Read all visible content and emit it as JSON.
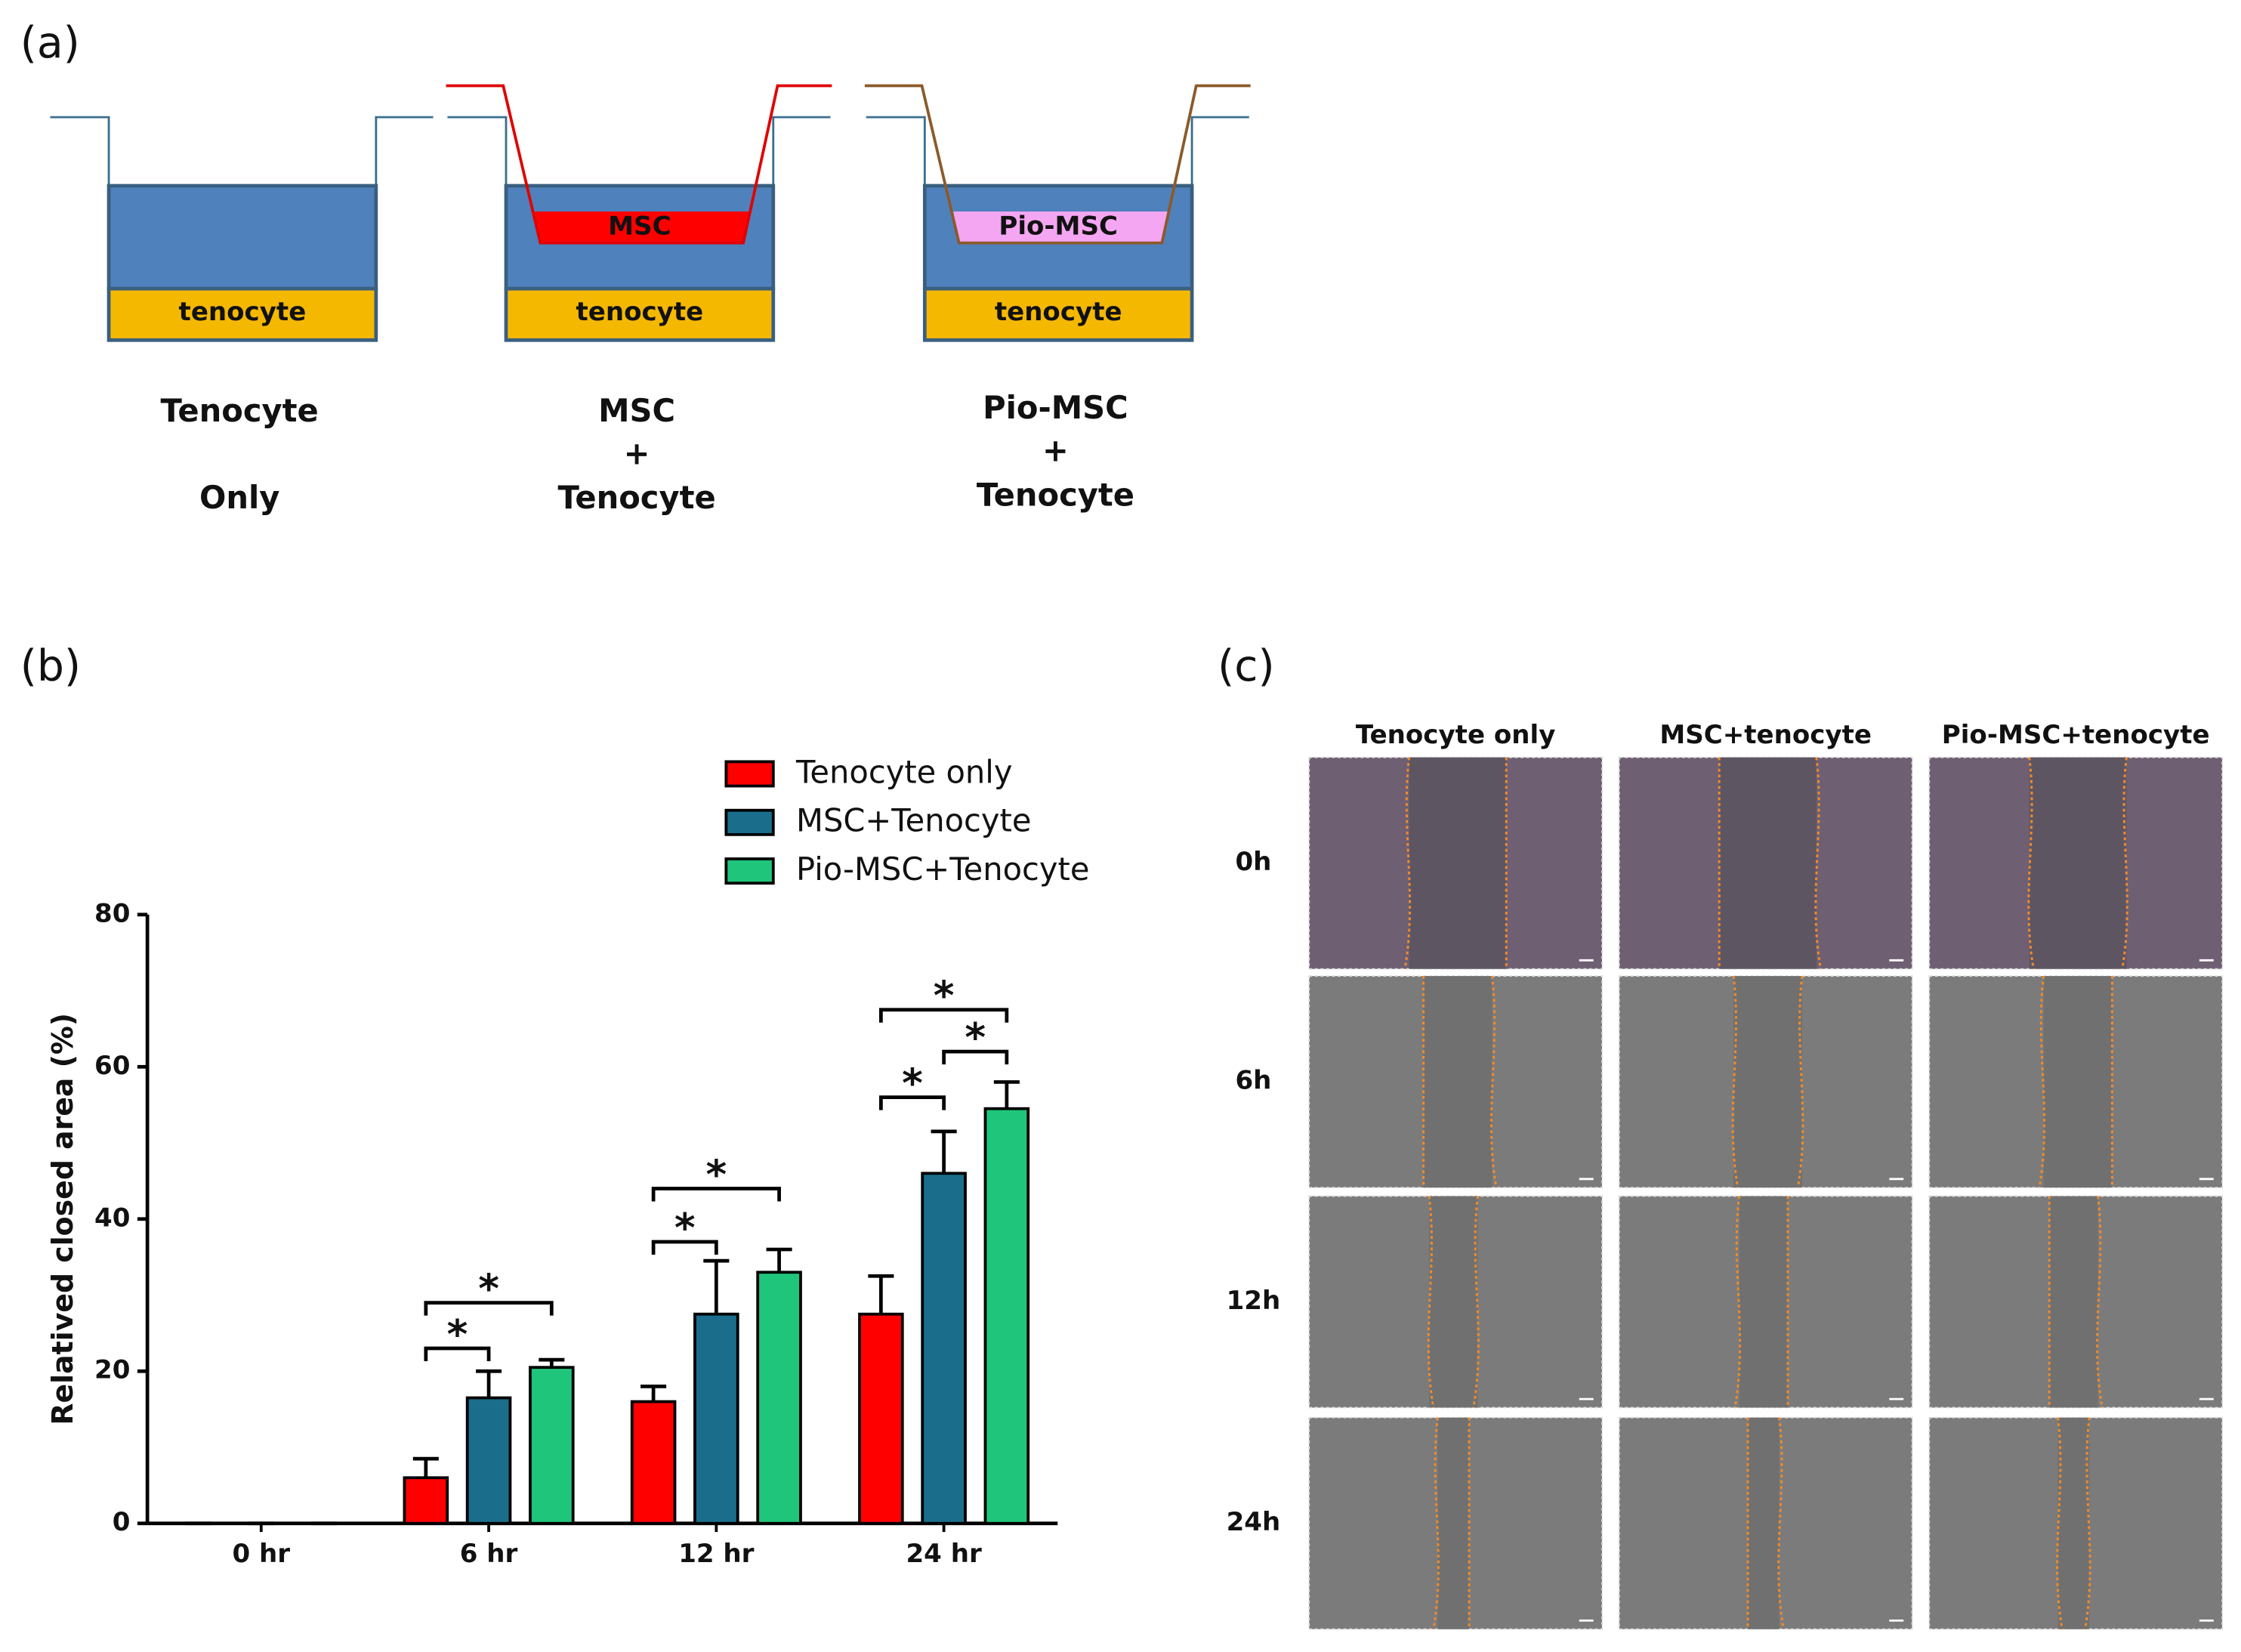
{
  "panel_a": {
    "label": "(a)",
    "wells": [
      {
        "layers": [
          "tenocyte"
        ],
        "caption": [
          "Tenocyte",
          "Only"
        ]
      },
      {
        "layers": [
          "tenocyte"
        ],
        "insert": "MSC",
        "caption": [
          "MSC",
          "+",
          "Tenocyte"
        ]
      },
      {
        "layers": [
          "tenocyte"
        ],
        "insert": "Pio-MSC",
        "caption": [
          "Pio-MSC",
          "+",
          "Tenocyte"
        ]
      }
    ]
  },
  "chart_data": {
    "type": "bar",
    "label": "(b)",
    "ylabel": "Relatived closed area (%)",
    "categories": [
      "0 hr",
      "6 hr",
      "12 hr",
      "24 hr"
    ],
    "series": [
      {
        "name": "Tenocyte only",
        "color": "#ff0000",
        "values": [
          0,
          6,
          16,
          27.5
        ],
        "errors": [
          0,
          2.5,
          2,
          5
        ]
      },
      {
        "name": "MSC+Tenocyte",
        "color": "#1a6e8c",
        "values": [
          0,
          16.5,
          27.5,
          46
        ],
        "errors": [
          0,
          3.5,
          7,
          5.5
        ]
      },
      {
        "name": "Pio-MSC+Tenocyte",
        "color": "#1fc57a",
        "values": [
          0,
          20.5,
          33,
          54.5
        ],
        "errors": [
          0,
          1,
          3,
          3.5
        ]
      }
    ],
    "ylim": [
      0,
      80
    ],
    "yticks": [
      0,
      20,
      40,
      60,
      80
    ],
    "legend": "top",
    "annotations": [
      {
        "text": "*",
        "category": 1,
        "from": 0,
        "to": 1,
        "y": 23
      },
      {
        "text": "*",
        "category": 1,
        "from": 0,
        "to": 2,
        "y": 29
      },
      {
        "text": "*",
        "category": 2,
        "from": 0,
        "to": 1,
        "y": 37
      },
      {
        "text": "*",
        "category": 2,
        "from": 0,
        "to": 2,
        "y": 44
      },
      {
        "text": "*",
        "category": 3,
        "from": 0,
        "to": 1,
        "y": 56
      },
      {
        "text": "*",
        "category": 3,
        "from": 1,
        "to": 2,
        "y": 62
      },
      {
        "text": "*",
        "category": 3,
        "from": 0,
        "to": 2,
        "y": 67.5
      }
    ]
  },
  "panel_c": {
    "label": "(c)",
    "columns": [
      "Tenocyte only",
      "MSC+tenocyte",
      "Pio-MSC+tenocyte"
    ],
    "rows": [
      "0h",
      "6h",
      "12h",
      "24h"
    ]
  }
}
